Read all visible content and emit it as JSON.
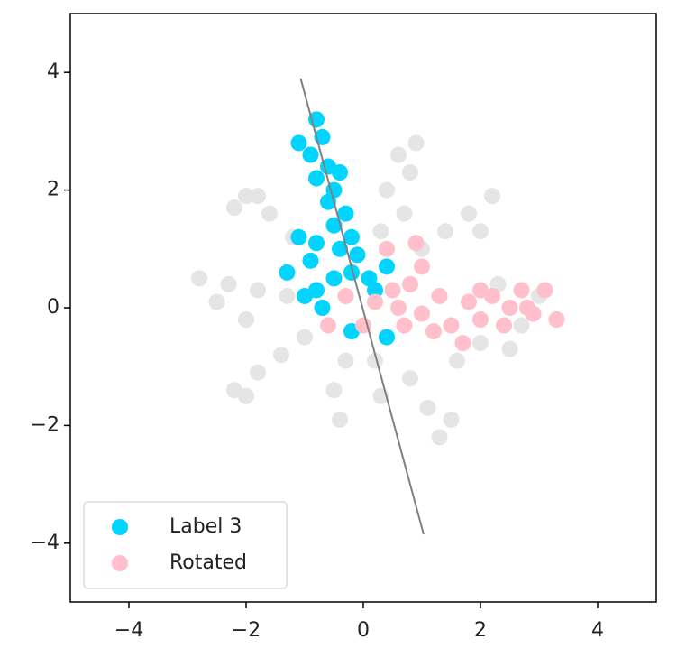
{
  "chart_data": {
    "type": "scatter",
    "xlim": [
      -5,
      5
    ],
    "ylim": [
      -5,
      5
    ],
    "xticks": [
      {
        "value": -4,
        "label": "−4"
      },
      {
        "value": -2,
        "label": "−2"
      },
      0,
      2,
      4
    ],
    "yticks": [
      {
        "value": -4,
        "label": "−4"
      },
      {
        "value": -2,
        "label": "−2"
      },
      0,
      2,
      4
    ],
    "legend": "lower left",
    "background_points": {
      "color": "#e5e5e5",
      "x": [
        -2.0,
        -1.6,
        -1.2,
        -2.2,
        -1.8,
        0.6,
        0.8,
        0.4,
        0.7,
        0.3,
        0.9,
        2.2,
        1.8,
        1.4,
        1.0,
        2.0,
        -2.8,
        -2.3,
        -1.8,
        -1.3,
        -2.5,
        -2.0,
        -2.2,
        -1.8,
        -1.4,
        -1.0,
        -2.0,
        -0.4,
        -0.5,
        -0.3,
        0.3,
        0.2,
        1.3,
        1.1,
        0.8,
        1.5,
        2.5,
        2.0,
        1.6,
        2.7,
        3.0,
        2.3
      ],
      "y": [
        1.9,
        1.6,
        1.2,
        1.7,
        1.9,
        2.6,
        2.3,
        2.0,
        1.6,
        1.3,
        2.8,
        1.9,
        1.6,
        1.3,
        1.0,
        1.3,
        0.5,
        0.4,
        0.3,
        0.2,
        0.1,
        -0.2,
        -1.4,
        -1.1,
        -0.8,
        -0.5,
        -1.5,
        -1.9,
        -1.4,
        -0.9,
        -1.5,
        -0.9,
        -2.2,
        -1.7,
        -1.2,
        -1.9,
        -0.7,
        -0.6,
        -0.9,
        -0.3,
        0.2,
        0.4
      ]
    },
    "series": [
      {
        "name": "Label 3",
        "color": "#00d4ff",
        "x": [
          -1.1,
          -0.8,
          -0.9,
          -0.7,
          -0.6,
          -0.8,
          -0.5,
          -0.4,
          -0.6,
          -0.3,
          -0.5,
          -0.2,
          -0.4,
          -0.1,
          -0.2,
          0.1,
          0.2,
          -0.8,
          -0.9,
          -1.3,
          -0.8,
          -1.0,
          -0.5,
          -0.7,
          0.4,
          -0.2,
          0.4,
          -1.1
        ],
        "y": [
          2.8,
          3.2,
          2.6,
          2.9,
          2.4,
          2.2,
          2.0,
          2.3,
          1.8,
          1.6,
          1.4,
          1.2,
          1.0,
          0.9,
          0.6,
          0.5,
          0.3,
          1.1,
          0.8,
          0.6,
          0.3,
          0.2,
          0.5,
          0.0,
          0.7,
          -0.4,
          -0.5,
          1.2
        ]
      },
      {
        "name": "Rotated",
        "color": "#ffc0cb",
        "x": [
          0.4,
          0.9,
          1.0,
          0.8,
          0.5,
          0.2,
          0.0,
          -0.6,
          -0.3,
          0.6,
          1.0,
          1.3,
          1.5,
          1.8,
          2.0,
          2.2,
          2.5,
          2.7,
          2.9,
          3.1,
          3.3,
          2.4,
          1.7,
          1.2,
          0.7,
          2.8,
          2.0
        ],
        "y": [
          1.0,
          1.1,
          0.7,
          0.4,
          0.3,
          0.1,
          -0.3,
          -0.3,
          0.2,
          0.0,
          -0.1,
          0.2,
          -0.3,
          0.1,
          -0.2,
          0.2,
          0.0,
          0.3,
          -0.1,
          0.3,
          -0.2,
          -0.3,
          -0.6,
          -0.4,
          -0.3,
          0.0,
          0.3
        ]
      }
    ],
    "lines": [
      {
        "color": "gray",
        "x": [
          -1.07,
          1.03
        ],
        "y": [
          3.9,
          -3.85
        ]
      }
    ]
  }
}
